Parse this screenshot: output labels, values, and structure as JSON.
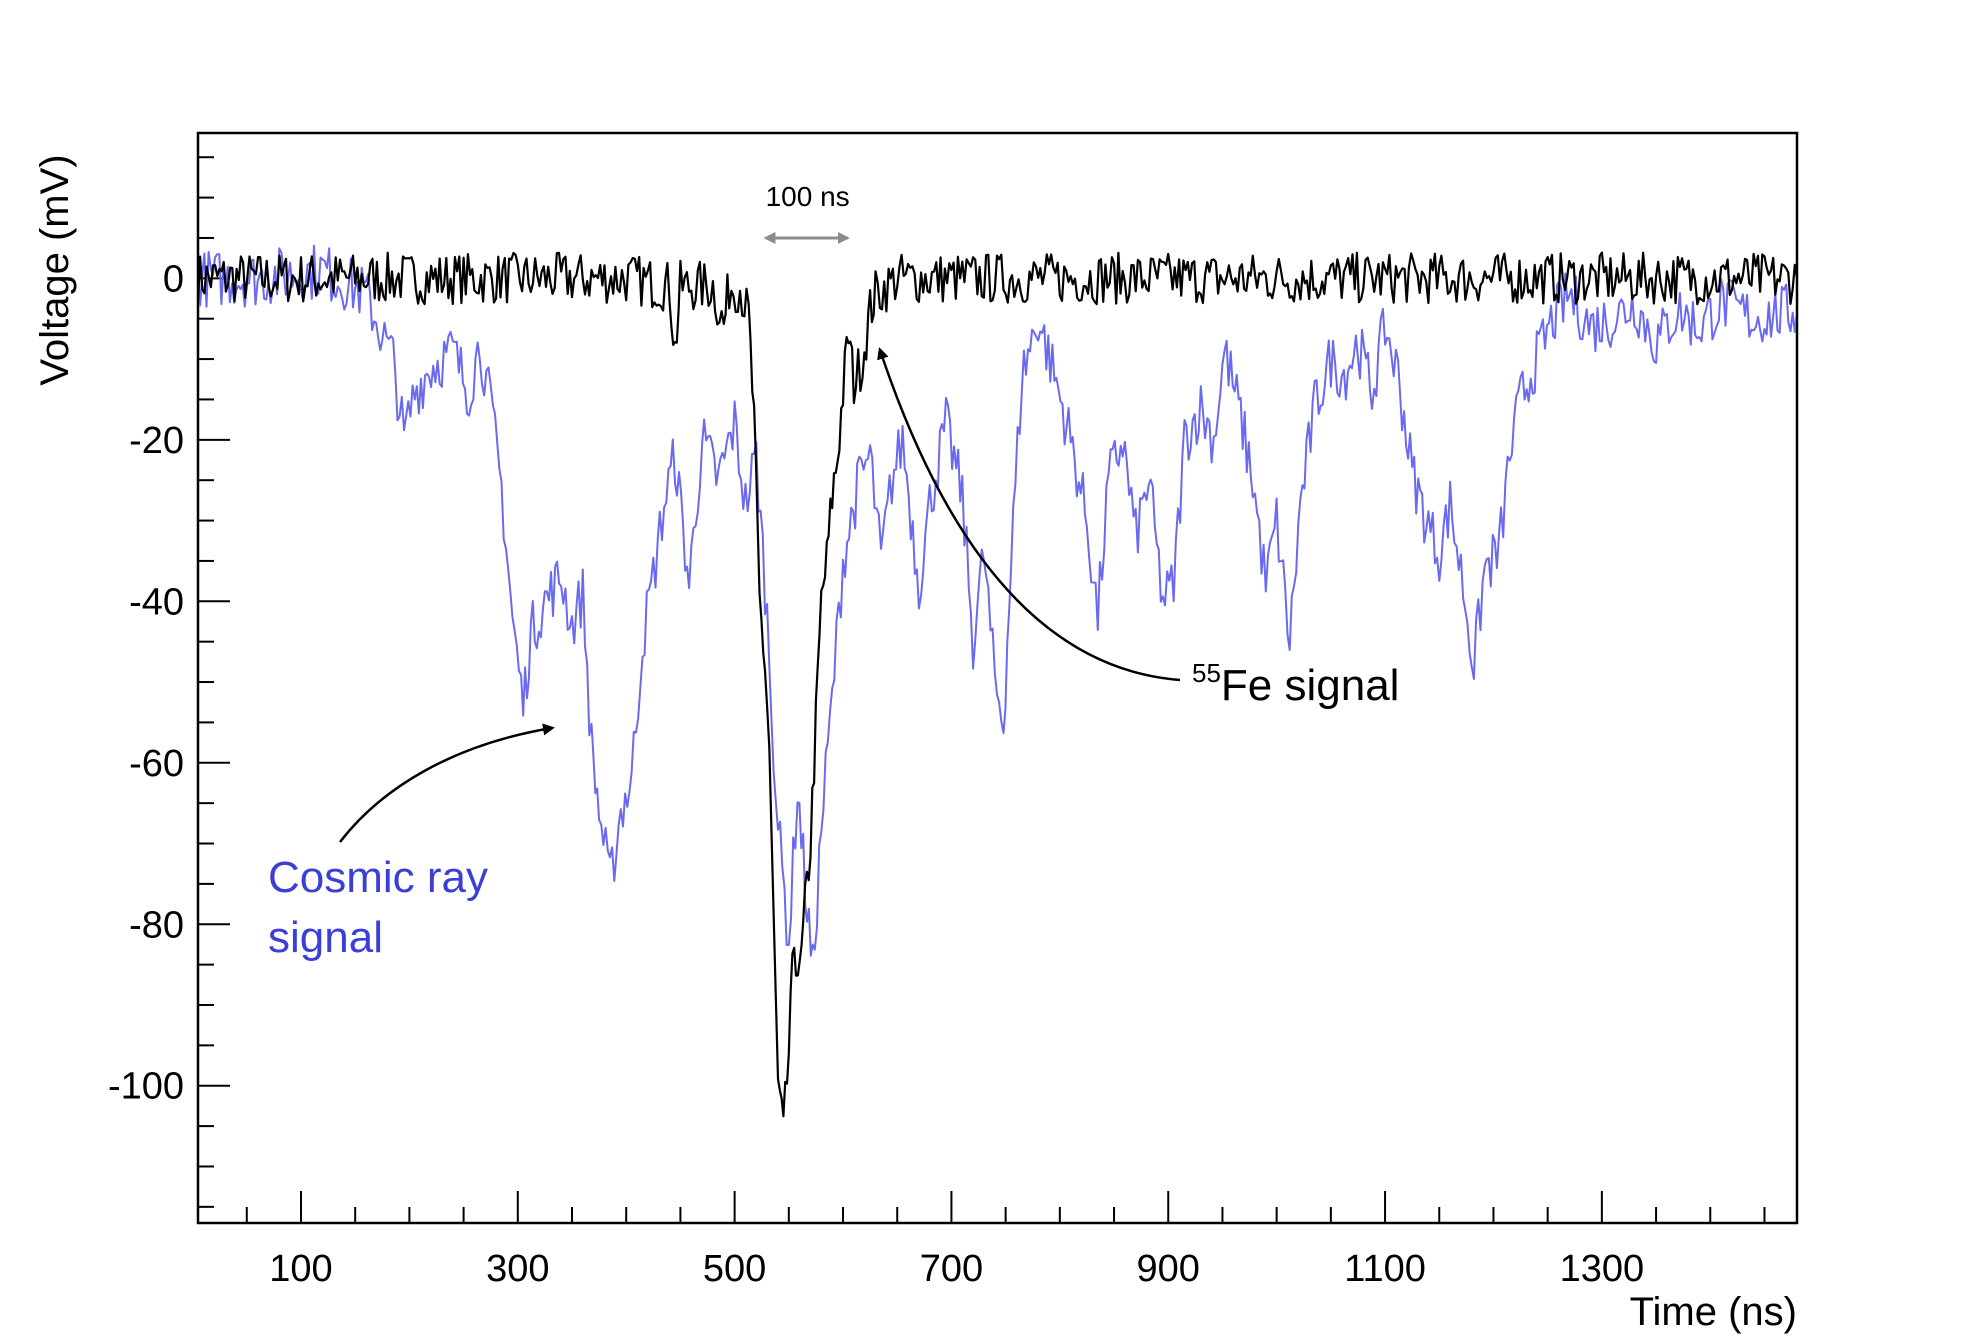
{
  "chart_data": {
    "type": "line",
    "title": "",
    "xlabel": "Time (ns)",
    "ylabel": "Voltage (mV)",
    "xlim": [
      5,
      1480
    ],
    "ylim": [
      -117,
      18
    ],
    "x_ticks": [
      100,
      300,
      500,
      700,
      900,
      1100,
      1300
    ],
    "y_ticks": [
      0,
      -20,
      -40,
      -60,
      -80,
      -100
    ],
    "grid": false,
    "legend": "none",
    "colors": {
      "fe55": "#000000",
      "cosmic": "#6a6af0",
      "cosmic_label": "#3b3fd6",
      "span_arrow": "#8c8c8c"
    },
    "series": [
      {
        "key": "fe55",
        "points": [
          [
            5,
            0
          ],
          [
            100,
            0
          ],
          [
            200,
            0
          ],
          [
            300,
            0
          ],
          [
            400,
            0
          ],
          [
            440,
            -1
          ],
          [
            445,
            -9
          ],
          [
            450,
            -1
          ],
          [
            480,
            -1
          ],
          [
            490,
            -6
          ],
          [
            495,
            -1
          ],
          [
            505,
            -1
          ],
          [
            513,
            -5
          ],
          [
            518,
            -18
          ],
          [
            523,
            -40
          ],
          [
            528,
            -48
          ],
          [
            532,
            -58
          ],
          [
            536,
            -80
          ],
          [
            540,
            -100
          ],
          [
            545,
            -106
          ],
          [
            550,
            -96
          ],
          [
            555,
            -82
          ],
          [
            560,
            -87
          ],
          [
            565,
            -78
          ],
          [
            570,
            -70
          ],
          [
            575,
            -55
          ],
          [
            580,
            -40
          ],
          [
            585,
            -35
          ],
          [
            590,
            -27
          ],
          [
            595,
            -22
          ],
          [
            600,
            -14
          ],
          [
            605,
            -7
          ],
          [
            610,
            -13
          ],
          [
            618,
            -10
          ],
          [
            625,
            -4
          ],
          [
            630,
            -2
          ],
          [
            650,
            0
          ],
          [
            700,
            0
          ],
          [
            800,
            0
          ],
          [
            900,
            0
          ],
          [
            1000,
            0
          ],
          [
            1100,
            0
          ],
          [
            1200,
            0
          ],
          [
            1300,
            0
          ],
          [
            1400,
            0
          ],
          [
            1480,
            0
          ]
        ]
      },
      {
        "key": "cosmic",
        "points": [
          [
            5,
            0
          ],
          [
            60,
            0
          ],
          [
            120,
            1
          ],
          [
            160,
            -2
          ],
          [
            175,
            -7
          ],
          [
            185,
            -10
          ],
          [
            195,
            -20
          ],
          [
            205,
            -14
          ],
          [
            220,
            -11
          ],
          [
            240,
            -9
          ],
          [
            255,
            -14
          ],
          [
            265,
            -8
          ],
          [
            275,
            -16
          ],
          [
            285,
            -26
          ],
          [
            295,
            -42
          ],
          [
            305,
            -53
          ],
          [
            312,
            -44
          ],
          [
            325,
            -40
          ],
          [
            340,
            -37
          ],
          [
            350,
            -43
          ],
          [
            360,
            -39
          ],
          [
            368,
            -58
          ],
          [
            375,
            -66
          ],
          [
            385,
            -75
          ],
          [
            395,
            -66
          ],
          [
            405,
            -62
          ],
          [
            415,
            -45
          ],
          [
            425,
            -37
          ],
          [
            435,
            -28
          ],
          [
            445,
            -22
          ],
          [
            458,
            -38
          ],
          [
            470,
            -20
          ],
          [
            485,
            -25
          ],
          [
            500,
            -18
          ],
          [
            510,
            -28
          ],
          [
            520,
            -22
          ],
          [
            530,
            -42
          ],
          [
            540,
            -68
          ],
          [
            550,
            -82
          ],
          [
            558,
            -63
          ],
          [
            565,
            -75
          ],
          [
            572,
            -86
          ],
          [
            580,
            -68
          ],
          [
            590,
            -52
          ],
          [
            600,
            -35
          ],
          [
            615,
            -25
          ],
          [
            625,
            -22
          ],
          [
            635,
            -35
          ],
          [
            645,
            -25
          ],
          [
            655,
            -20
          ],
          [
            670,
            -38
          ],
          [
            680,
            -28
          ],
          [
            695,
            -18
          ],
          [
            710,
            -27
          ],
          [
            720,
            -45
          ],
          [
            730,
            -34
          ],
          [
            740,
            -50
          ],
          [
            748,
            -55
          ],
          [
            755,
            -35
          ],
          [
            765,
            -12
          ],
          [
            780,
            -5
          ],
          [
            795,
            -12
          ],
          [
            810,
            -20
          ],
          [
            825,
            -30
          ],
          [
            835,
            -42
          ],
          [
            845,
            -25
          ],
          [
            858,
            -20
          ],
          [
            870,
            -32
          ],
          [
            882,
            -25
          ],
          [
            895,
            -40
          ],
          [
            905,
            -38
          ],
          [
            915,
            -20
          ],
          [
            930,
            -16
          ],
          [
            942,
            -20
          ],
          [
            952,
            -9
          ],
          [
            965,
            -16
          ],
          [
            978,
            -25
          ],
          [
            990,
            -38
          ],
          [
            1000,
            -30
          ],
          [
            1012,
            -45
          ],
          [
            1022,
            -28
          ],
          [
            1035,
            -16
          ],
          [
            1050,
            -10
          ],
          [
            1062,
            -12
          ],
          [
            1075,
            -8
          ],
          [
            1088,
            -14
          ],
          [
            1100,
            -6
          ],
          [
            1112,
            -12
          ],
          [
            1125,
            -24
          ],
          [
            1138,
            -30
          ],
          [
            1150,
            -34
          ],
          [
            1160,
            -28
          ],
          [
            1172,
            -38
          ],
          [
            1182,
            -48
          ],
          [
            1192,
            -36
          ],
          [
            1205,
            -34
          ],
          [
            1215,
            -22
          ],
          [
            1225,
            -15
          ],
          [
            1240,
            -10
          ],
          [
            1255,
            -5
          ],
          [
            1270,
            -2
          ],
          [
            1290,
            -6
          ],
          [
            1310,
            -5
          ],
          [
            1330,
            -3
          ],
          [
            1350,
            -8
          ],
          [
            1370,
            -4
          ],
          [
            1390,
            -6
          ],
          [
            1410,
            -3
          ],
          [
            1440,
            -5
          ],
          [
            1480,
            -4
          ]
        ]
      }
    ],
    "annotations": {
      "fe55_label_sup": "55",
      "fe55_label": "Fe signal",
      "cosmic_label_line1": "Cosmic ray",
      "cosmic_label_line2": "signal",
      "span_label": "100 ns",
      "span_from": 510,
      "span_to": 610,
      "span_y": 5
    }
  }
}
